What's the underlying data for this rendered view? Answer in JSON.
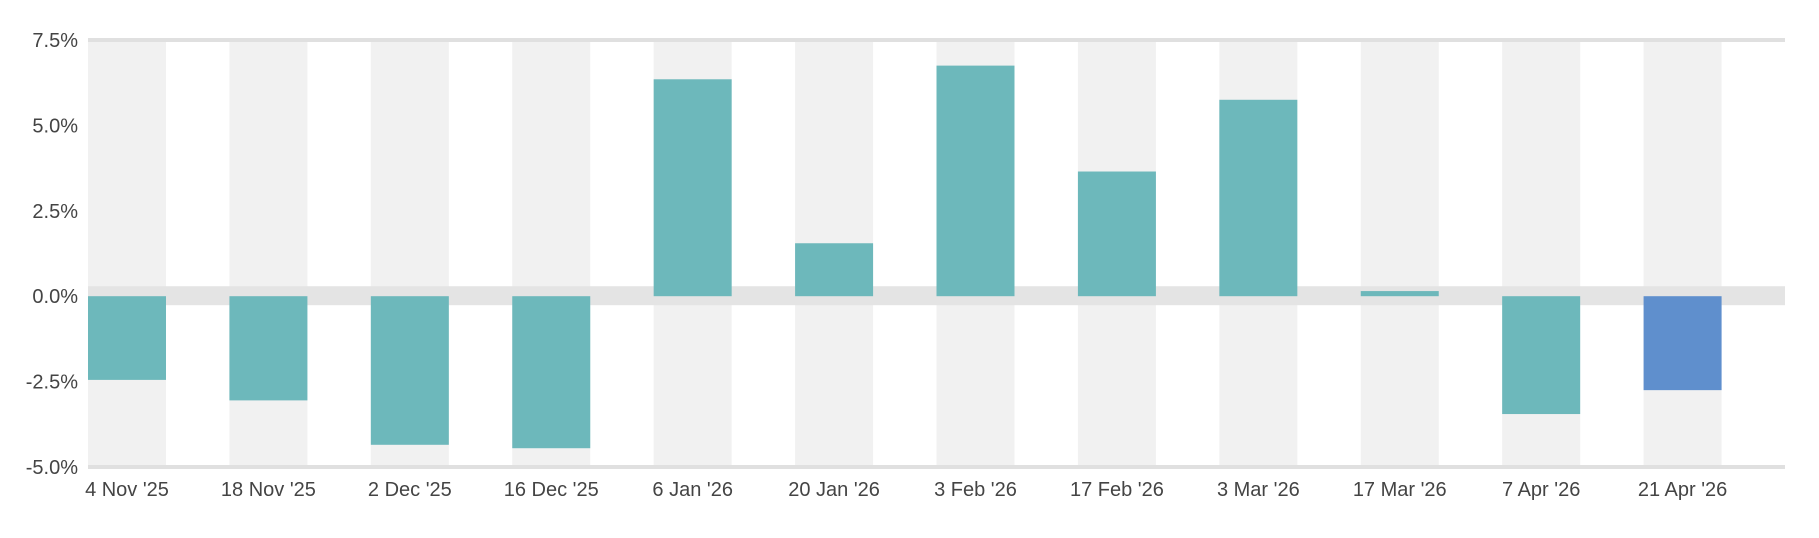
{
  "chart_data": {
    "type": "bar",
    "categories": [
      "4 Nov '25",
      "18 Nov '25",
      "2 Dec '25",
      "16 Dec '25",
      "6 Jan '26",
      "20 Jan '26",
      "3 Feb '26",
      "17 Feb '26",
      "3 Mar '26",
      "17 Mar '26",
      "7 Apr '26",
      "21 Apr '26"
    ],
    "series": [
      {
        "values": [
          -2.45,
          -3.05,
          -4.35,
          -4.45,
          6.35,
          1.55,
          6.75,
          3.65,
          5.75,
          0.15,
          -3.45,
          -2.75
        ]
      }
    ],
    "ylim": [
      -5.0,
      7.5
    ],
    "yticks": [
      "7.5%",
      "5.0%",
      "2.5%",
      "0.0%",
      "-2.5%",
      "-5.0%"
    ],
    "ytick_values": [
      7.5,
      5.0,
      2.5,
      0.0,
      -2.5,
      -5.0
    ],
    "title": "",
    "xlabel": "",
    "ylabel": "",
    "grid": "alternating vertical bands",
    "legend": "none",
    "colors": {
      "bar": "#6db8bb",
      "highlight_bar": "#5f8fcd",
      "band": "#f1f1f1",
      "zero_band": "#e4e4e4",
      "axis_line": "#e0e0e0",
      "text": "#444444"
    },
    "highlight_index": 11
  }
}
